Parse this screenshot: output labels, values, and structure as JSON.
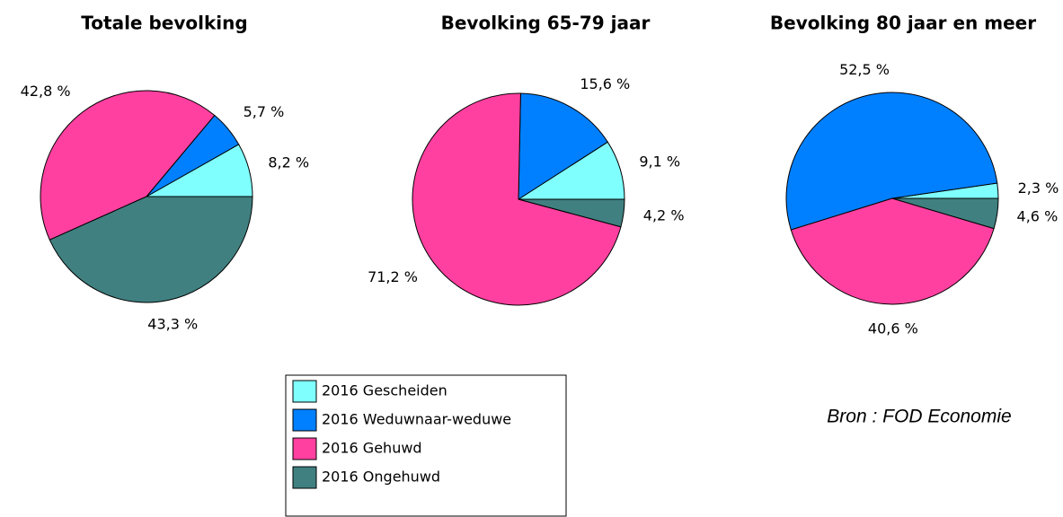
{
  "chart_data": [
    {
      "type": "pie",
      "title": "Totale bevolking",
      "values": [
        8.2,
        5.7,
        42.8,
        43.3
      ],
      "value_labels": [
        "8,2 %",
        "5,7 %",
        "42,8 %",
        "43,3 %"
      ]
    },
    {
      "type": "pie",
      "title": "Bevolking 65-79 jaar",
      "values": [
        9.1,
        15.6,
        71.2,
        4.2
      ],
      "value_labels": [
        "9,1 %",
        "15,6 %",
        "71,2 %",
        "4,2 %"
      ]
    },
    {
      "type": "pie",
      "title": "Bevolking 80 jaar en meer",
      "values": [
        2.3,
        52.5,
        40.6,
        4.6
      ],
      "value_labels": [
        "2,3 %",
        "52,5 %",
        "40,6 %",
        "4,6 %"
      ]
    }
  ],
  "legend": {
    "labels": [
      "2016 Gescheiden",
      "2016 Weduwnaar-weduwe",
      "2016 Gehuwd",
      "2016 Ongehuwd"
    ],
    "colors": [
      "#80ffff",
      "#0080ff",
      "#ff40a0",
      "#408080"
    ]
  },
  "source": "Bron : FOD Economie"
}
